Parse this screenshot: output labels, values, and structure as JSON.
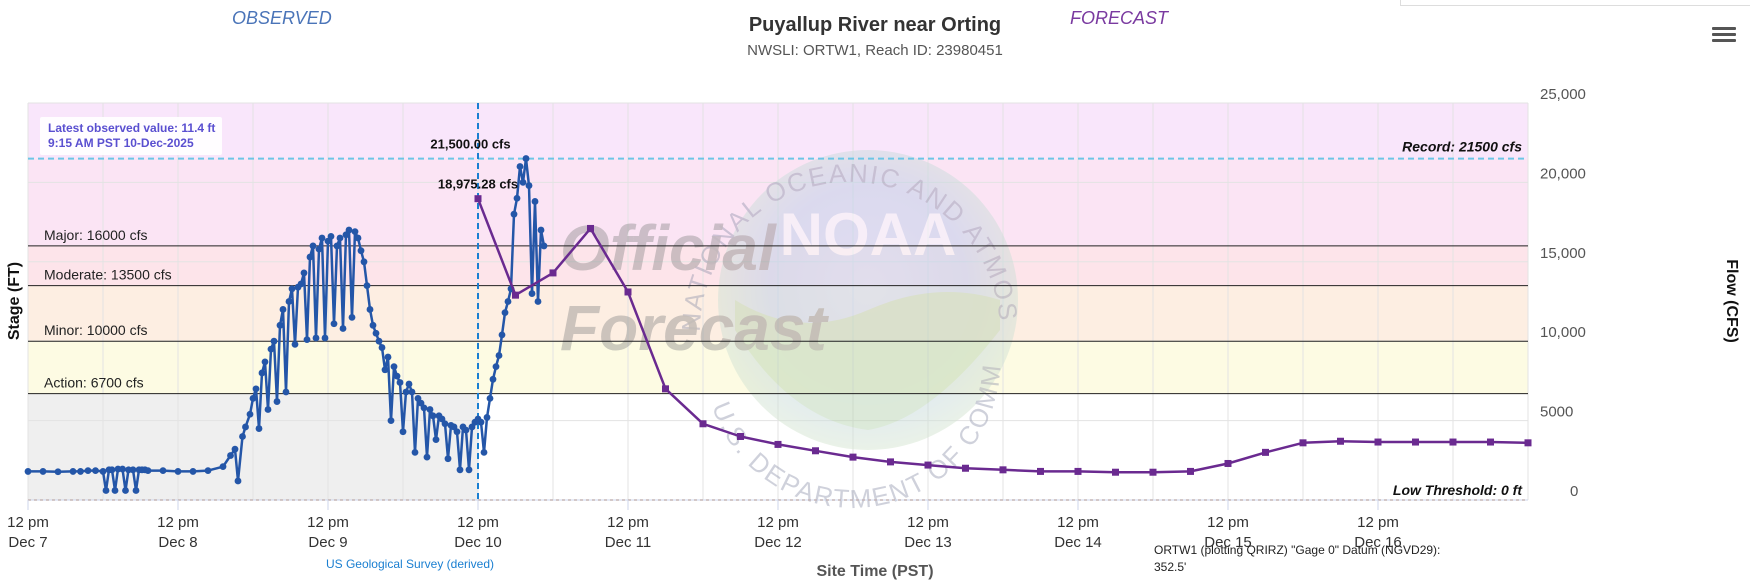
{
  "header": {
    "observed_label": "OBSERVED",
    "forecast_label": "FORECAST",
    "title": "Puyallup River near Orting",
    "subtitle": "NWSLI: ORTW1, Reach ID: 23980451"
  },
  "menu_icon": "hamburger-menu-icon",
  "chart_data": {
    "type": "line",
    "title": "Puyallup River near Orting",
    "xlabel": "Site Time (PST)",
    "ylabel_left": "Stage (FT)",
    "ylabel_right": "Flow (CFS)",
    "ylim": [
      0,
      25000
    ],
    "xlim_days": [
      0,
      10
    ],
    "right_ticks": [
      "0",
      "5000",
      "10,000",
      "15,000",
      "20,000",
      "25,000"
    ],
    "x_ticks": [
      {
        "line1": "12 pm",
        "line2": "Dec 7"
      },
      {
        "line1": "12 pm",
        "line2": "Dec 8"
      },
      {
        "line1": "12 pm",
        "line2": "Dec 9"
      },
      {
        "line1": "12 pm",
        "line2": "Dec 10"
      },
      {
        "line1": "12 pm",
        "line2": "Dec 11"
      },
      {
        "line1": "12 pm",
        "line2": "Dec 12"
      },
      {
        "line1": "12 pm",
        "line2": "Dec 13"
      },
      {
        "line1": "12 pm",
        "line2": "Dec 14"
      },
      {
        "line1": "12 pm",
        "line2": "Dec 15"
      },
      {
        "line1": "12 pm",
        "line2": "Dec 16"
      }
    ],
    "bands": [
      {
        "name": "Record",
        "from": 21500,
        "to": 25000,
        "color": "#f9e6fb"
      },
      {
        "name": "Major",
        "from": 16000,
        "to": 21500,
        "color": "#fbe4f4"
      },
      {
        "name": "Moderate",
        "from": 13500,
        "to": 16000,
        "color": "#fde4ea"
      },
      {
        "name": "Minor",
        "from": 10000,
        "to": 13500,
        "color": "#fdeee2"
      },
      {
        "name": "Action",
        "from": 6700,
        "to": 10000,
        "color": "#fdfbe3"
      },
      {
        "name": "Observed range shade",
        "from": 0,
        "to": 6700,
        "color": "#efefef"
      }
    ],
    "thresholds": [
      {
        "label": "Major: 16000 cfs",
        "value": 16000
      },
      {
        "label": "Moderate: 13500 cfs",
        "value": 13500
      },
      {
        "label": "Minor: 10000 cfs",
        "value": 10000
      },
      {
        "label": "Action: 6700 cfs",
        "value": 6700
      }
    ],
    "record": {
      "label": "Record: 21500 cfs",
      "value": 21500
    },
    "low_threshold": {
      "label": "Low Threshold: 0 ft",
      "value": 0
    },
    "observed_note": {
      "line1": "Latest observed value: 11.4 ft",
      "line2": "9:15 AM PST 10-Dec-2025"
    },
    "peak_labels": [
      {
        "text": "21,500.00 cfs",
        "x": 2.95,
        "y": 21500
      },
      {
        "text": "18,975.28 cfs",
        "x": 3.0,
        "y": 18975
      }
    ],
    "now_day": 3.0,
    "series": [
      {
        "name": "Observed",
        "color": "#2456a8",
        "points": [
          [
            0.0,
            1800
          ],
          [
            0.1,
            1800
          ],
          [
            0.2,
            1780
          ],
          [
            0.3,
            1800
          ],
          [
            0.35,
            1800
          ],
          [
            0.4,
            1850
          ],
          [
            0.45,
            1850
          ],
          [
            0.5,
            1800
          ],
          [
            0.52,
            600
          ],
          [
            0.54,
            1900
          ],
          [
            0.56,
            1900
          ],
          [
            0.58,
            600
          ],
          [
            0.6,
            1950
          ],
          [
            0.63,
            1950
          ],
          [
            0.65,
            600
          ],
          [
            0.67,
            1900
          ],
          [
            0.7,
            1900
          ],
          [
            0.72,
            600
          ],
          [
            0.74,
            1900
          ],
          [
            0.76,
            1900
          ],
          [
            0.78,
            1900
          ],
          [
            0.8,
            1850
          ],
          [
            0.9,
            1850
          ],
          [
            1.0,
            1800
          ],
          [
            1.1,
            1800
          ],
          [
            1.2,
            1850
          ],
          [
            1.3,
            2100
          ],
          [
            1.35,
            2800
          ],
          [
            1.38,
            3200
          ],
          [
            1.4,
            1200
          ],
          [
            1.43,
            4000
          ],
          [
            1.45,
            4600
          ],
          [
            1.48,
            5400
          ],
          [
            1.5,
            6400
          ],
          [
            1.52,
            7000
          ],
          [
            1.54,
            4500
          ],
          [
            1.56,
            8000
          ],
          [
            1.58,
            8700
          ],
          [
            1.6,
            5700
          ],
          [
            1.62,
            9500
          ],
          [
            1.64,
            10000
          ],
          [
            1.66,
            6200
          ],
          [
            1.68,
            11000
          ],
          [
            1.7,
            12000
          ],
          [
            1.72,
            6800
          ],
          [
            1.74,
            12500
          ],
          [
            1.76,
            13300
          ],
          [
            1.78,
            9800
          ],
          [
            1.8,
            13400
          ],
          [
            1.82,
            13600
          ],
          [
            1.84,
            14300
          ],
          [
            1.86,
            10100
          ],
          [
            1.88,
            15300
          ],
          [
            1.9,
            16000
          ],
          [
            1.92,
            10200
          ],
          [
            1.94,
            15800
          ],
          [
            1.96,
            16500
          ],
          [
            1.98,
            10200
          ],
          [
            2.0,
            16300
          ],
          [
            2.02,
            16600
          ],
          [
            2.04,
            11100
          ],
          [
            2.06,
            16000
          ],
          [
            2.08,
            16500
          ],
          [
            2.1,
            10800
          ],
          [
            2.12,
            16700
          ],
          [
            2.14,
            17000
          ],
          [
            2.16,
            11500
          ],
          [
            2.18,
            16900
          ],
          [
            2.2,
            16500
          ],
          [
            2.22,
            15700
          ],
          [
            2.24,
            15000
          ],
          [
            2.26,
            13500
          ],
          [
            2.28,
            12000
          ],
          [
            2.3,
            11000
          ],
          [
            2.32,
            10500
          ],
          [
            2.34,
            10000
          ],
          [
            2.36,
            9600
          ],
          [
            2.38,
            8200
          ],
          [
            2.4,
            9000
          ],
          [
            2.42,
            5000
          ],
          [
            2.44,
            8400
          ],
          [
            2.46,
            7800
          ],
          [
            2.48,
            7400
          ],
          [
            2.5,
            4300
          ],
          [
            2.52,
            6800
          ],
          [
            2.54,
            7300
          ],
          [
            2.56,
            6800
          ],
          [
            2.58,
            3000
          ],
          [
            2.6,
            6400
          ],
          [
            2.62,
            6100
          ],
          [
            2.64,
            5800
          ],
          [
            2.66,
            2700
          ],
          [
            2.68,
            5700
          ],
          [
            2.7,
            5300
          ],
          [
            2.72,
            3800
          ],
          [
            2.74,
            5300
          ],
          [
            2.76,
            5100
          ],
          [
            2.78,
            4800
          ],
          [
            2.8,
            2600
          ],
          [
            2.82,
            4700
          ],
          [
            2.84,
            4600
          ],
          [
            2.86,
            4300
          ],
          [
            2.88,
            1900
          ],
          [
            2.9,
            4600
          ],
          [
            2.92,
            4400
          ],
          [
            2.94,
            1900
          ],
          [
            2.96,
            4600
          ],
          [
            2.98,
            4900
          ],
          [
            3.0,
            5100
          ],
          [
            3.02,
            4900
          ],
          [
            3.04,
            3000
          ],
          [
            3.06,
            5200
          ],
          [
            3.08,
            6400
          ],
          [
            3.1,
            7600
          ],
          [
            3.12,
            8400
          ],
          [
            3.14,
            9100
          ],
          [
            3.16,
            10400
          ],
          [
            3.18,
            11800
          ],
          [
            3.2,
            12500
          ],
          [
            3.22,
            13300
          ],
          [
            3.24,
            18000
          ],
          [
            3.26,
            19000
          ],
          [
            3.28,
            21000
          ],
          [
            3.3,
            20000
          ],
          [
            3.32,
            21500
          ],
          [
            3.34,
            19800
          ],
          [
            3.36,
            13000
          ],
          [
            3.38,
            18800
          ],
          [
            3.4,
            12500
          ],
          [
            3.42,
            17000
          ],
          [
            3.44,
            16000
          ]
        ]
      },
      {
        "name": "Forecast",
        "color": "#6a2a90",
        "points": [
          [
            3.0,
            18975
          ],
          [
            3.25,
            12900
          ],
          [
            3.5,
            14300
          ],
          [
            3.75,
            17100
          ],
          [
            4.0,
            13100
          ],
          [
            4.25,
            7000
          ],
          [
            4.5,
            4800
          ],
          [
            4.75,
            4000
          ],
          [
            5.0,
            3500
          ],
          [
            5.25,
            3100
          ],
          [
            5.5,
            2700
          ],
          [
            5.75,
            2400
          ],
          [
            6.0,
            2200
          ],
          [
            6.25,
            2000
          ],
          [
            6.5,
            1900
          ],
          [
            6.75,
            1800
          ],
          [
            7.0,
            1800
          ],
          [
            7.25,
            1750
          ],
          [
            7.5,
            1750
          ],
          [
            7.75,
            1800
          ],
          [
            8.0,
            2300
          ],
          [
            8.25,
            3000
          ],
          [
            8.5,
            3600
          ],
          [
            8.75,
            3700
          ],
          [
            9.0,
            3650
          ],
          [
            9.25,
            3650
          ],
          [
            9.5,
            3650
          ],
          [
            9.75,
            3650
          ],
          [
            10.0,
            3600
          ]
        ]
      }
    ],
    "watermark": {
      "text1": "Official",
      "text2": "Forecast",
      "logo": "NOAA",
      "ring": "NATIONAL OCEANIC AND ATMOSPHERIC ADMINISTRATION",
      "ring2": "U.S. DEPARTMENT OF COMMERCE"
    },
    "source_credit": "US Geological Survey (derived)",
    "datum_note": {
      "line1": "ORTW1 (plotting QRIRZ) \"Gage 0\" Datum (NGVD29):",
      "line2": "352.5'"
    }
  }
}
